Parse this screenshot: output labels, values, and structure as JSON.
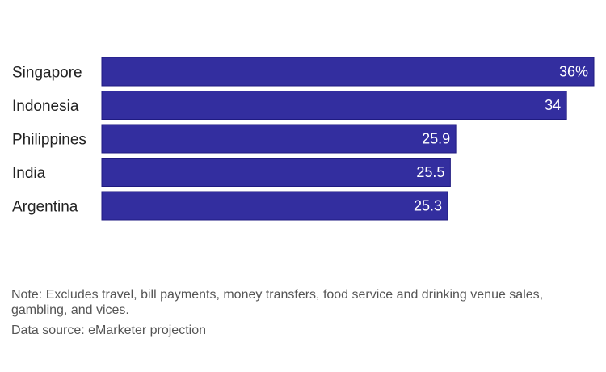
{
  "chart_data": {
    "type": "bar",
    "orientation": "horizontal",
    "categories": [
      "Singapore",
      "Indonesia",
      "Philippines",
      "India",
      "Argentina"
    ],
    "values": [
      36,
      34,
      25.9,
      25.5,
      25.3
    ],
    "value_labels": [
      "36%",
      "34",
      "25.9",
      "25.5",
      "25.3"
    ],
    "xlim": [
      0,
      36
    ],
    "title": "",
    "xlabel": "",
    "ylabel": "",
    "grid": false,
    "bar_color": "#332e9f"
  },
  "notes": {
    "note": "Note: Excludes travel, bill payments, money transfers, food service and drinking venue sales, gambling, and vices.",
    "source": "Data source: eMarketer projection"
  }
}
